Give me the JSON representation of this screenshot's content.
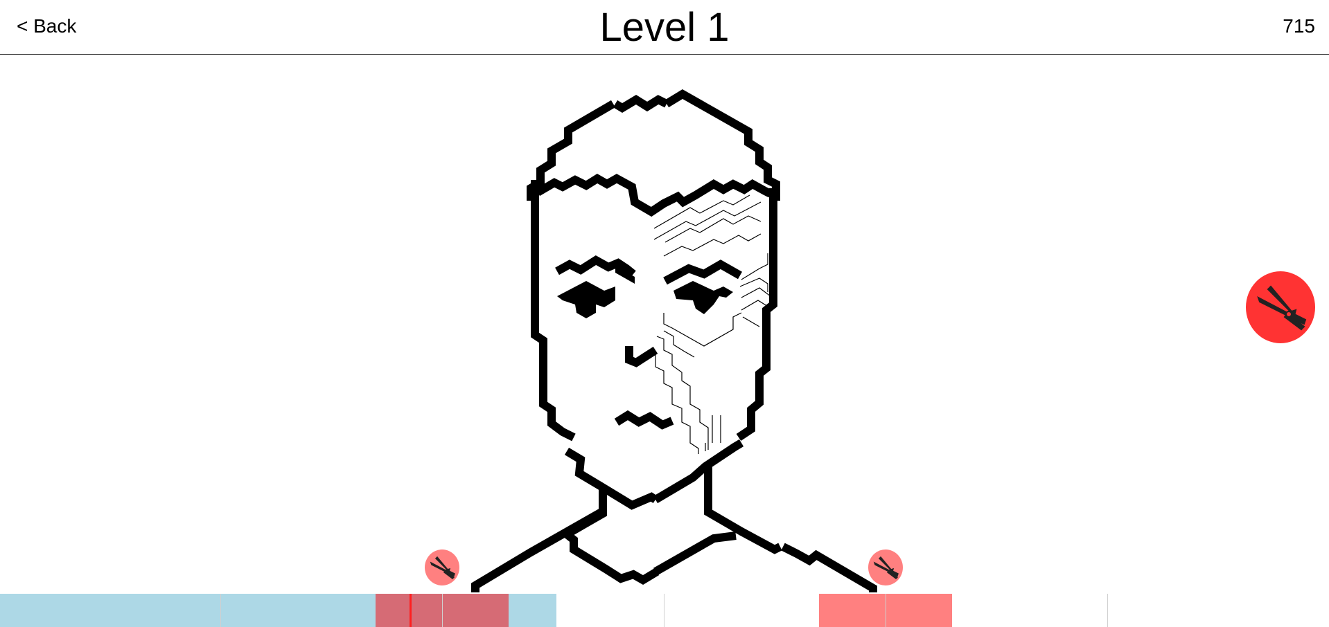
{
  "header": {
    "back_label": "< Back",
    "title": "Level 1",
    "score": "715"
  },
  "icons": {
    "peg": "clothespin-icon"
  },
  "colors": {
    "peg_active": "#ff3333",
    "peg_placed": "#ff8080",
    "timeline_blue": "#add8e6",
    "timeline_overlap": "#d66b75",
    "timeline_red": "#ff8080",
    "cursor": "#ff2020"
  }
}
